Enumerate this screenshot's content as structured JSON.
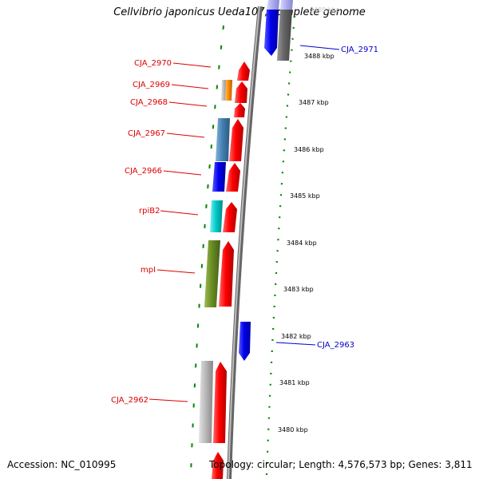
{
  "title": "Cellvibrio japonicus Ueda107, complete genome",
  "accession": "Accession: NC_010995",
  "summary": "Topology: circular; Length: 4,576,573 bp; Genes: 3,811",
  "scale_labels": [
    "3489 kbp",
    "3488 kbp",
    "3487 kbp",
    "3486 kbp",
    "3485 kbp",
    "3484 kbp",
    "3483 kbp",
    "3482 kbp",
    "3481 kbp",
    "3480 kbp"
  ],
  "gene_labels_left": [
    "CJA_2970",
    "CJA_2969",
    "CJA_2968",
    "CJA_2967",
    "CJA_2966",
    "rpiB2",
    "mpI",
    "CJA_2962"
  ],
  "gene_labels_right": [
    "CJA_2971",
    "CJA_2963"
  ],
  "colors": {
    "label_red": "#dd0000",
    "label_blue": "#0000cc",
    "cds_red": "#ff0000",
    "cds_blue": "#0000ee",
    "steel_blue": "#4682b4",
    "cyan": "#00cccc",
    "olive_green": "#6b8e23",
    "orange": "#ff8c00",
    "gray": "#aaaaaa",
    "dark_gray": "#666666",
    "dotted_green": "#008800"
  }
}
